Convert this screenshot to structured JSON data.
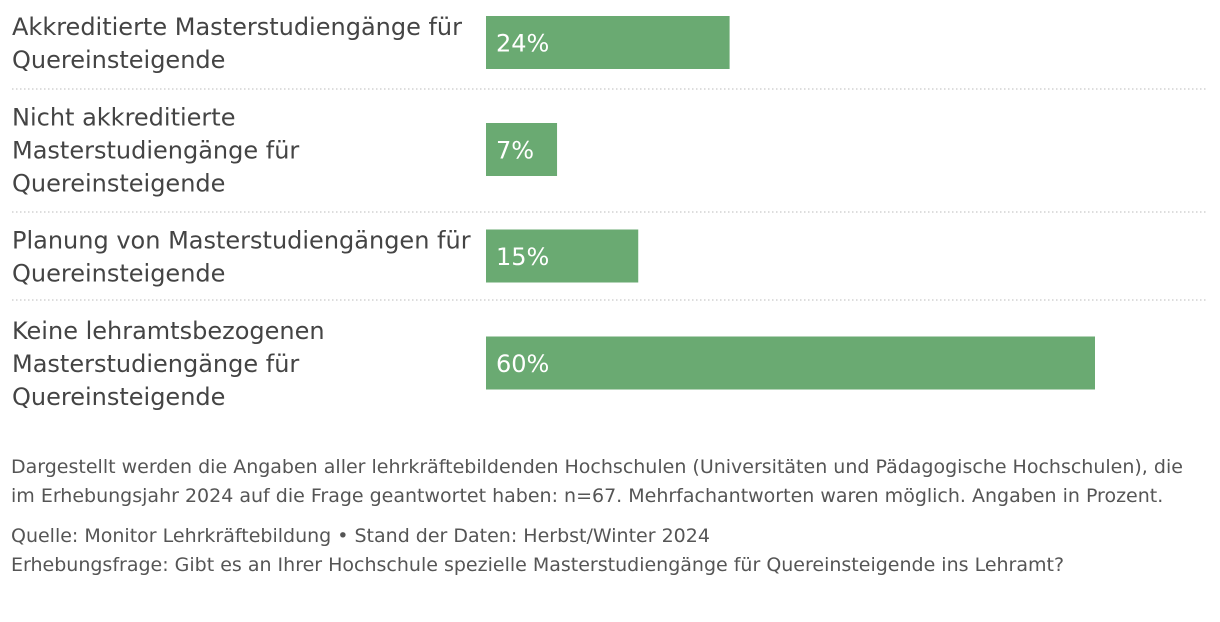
{
  "chart_data": {
    "type": "bar",
    "orientation": "horizontal",
    "categories": [
      [
        "Akkreditierte Masterstudiengänge für",
        "Quereinsteigende"
      ],
      [
        "Nicht akkreditierte",
        "Masterstudiengänge für",
        "Quereinsteigende"
      ],
      [
        "Planung von Masterstudiengängen für",
        "Quereinsteigende"
      ],
      [
        "Keine lehramtsbezogenen",
        "Masterstudiengänge für",
        "Quereinsteigende"
      ]
    ],
    "values": [
      24,
      7,
      15,
      60
    ],
    "value_labels": [
      "24%",
      "7%",
      "15%",
      "60%"
    ],
    "unit": "%",
    "xlim": [
      0,
      100
    ],
    "bar_color": "#6aaa72",
    "grid": false,
    "legend": "none"
  },
  "notes": {
    "description": "Dargestellt werden die Angaben aller lehrkräftebildenden Hochschulen (Universitäten und Pädagogische Hochschulen), die im Erhebungsjahr 2024 auf die Frage geantwortet haben: n=67. Mehrfachantworten waren möglich. Angaben in Prozent.",
    "source": "Quelle: Monitor Lehrkräftebildung • Stand der Daten: Herbst/Winter 2024",
    "question": "Erhebungsfrage: Gibt es an Ihrer Hochschule spezielle Masterstudiengänge für Quereinsteigende ins Lehramt?"
  }
}
